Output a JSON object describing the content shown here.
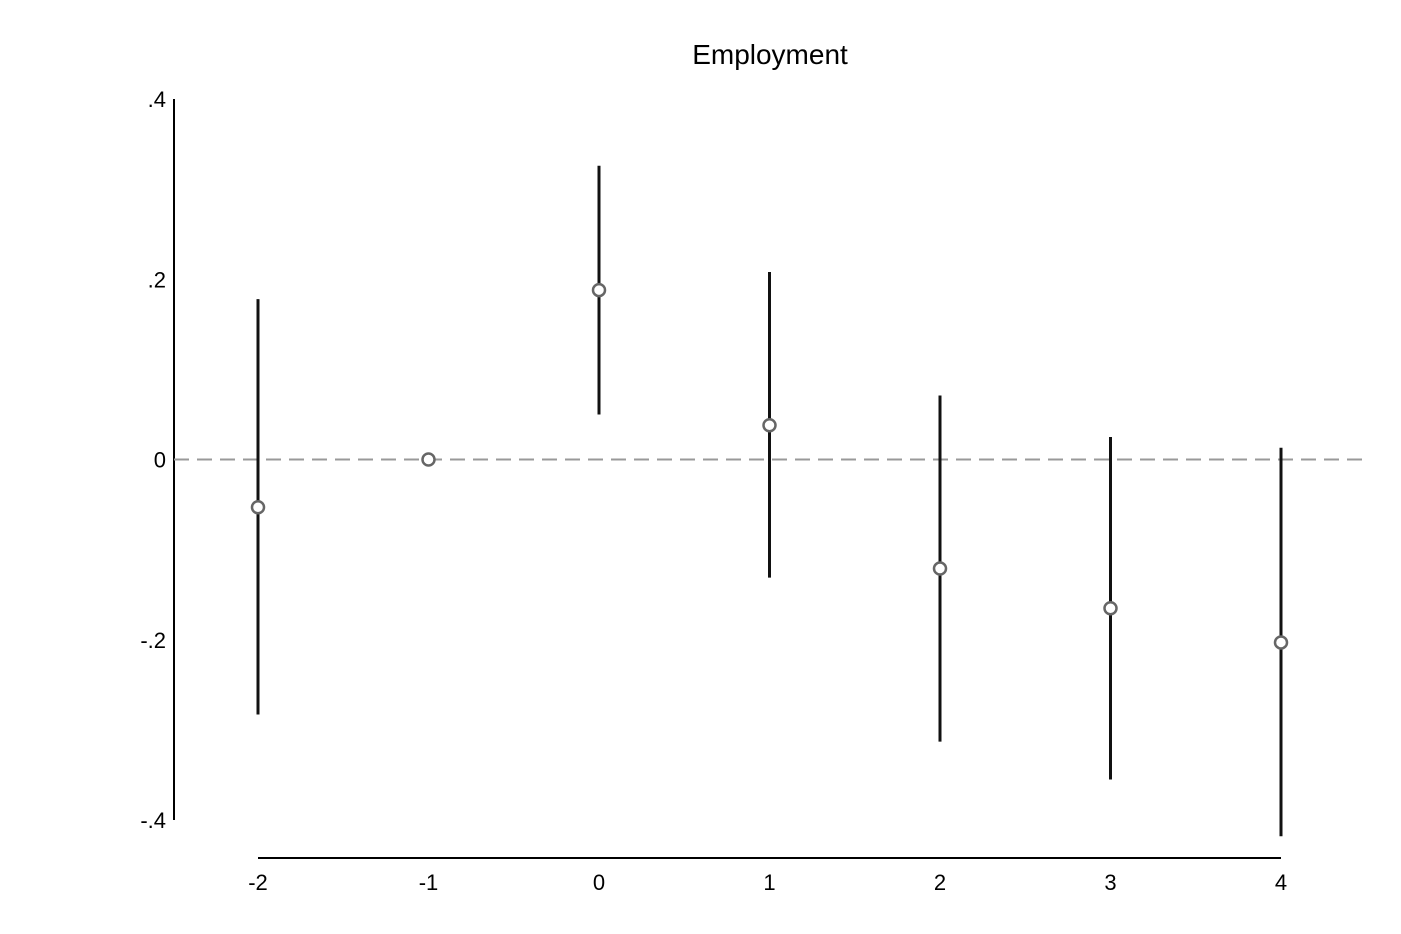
{
  "chart_data": {
    "type": "scatter",
    "title": "Employment",
    "xlabel": "",
    "ylabel": "",
    "x": [
      -2,
      -1,
      0,
      1,
      2,
      3,
      4
    ],
    "series": [
      {
        "values": [
          -0.053,
          0.0,
          0.188,
          0.038,
          -0.121,
          -0.165,
          -0.203
        ],
        "ci_lower": [
          -0.283,
          null,
          0.05,
          -0.131,
          -0.313,
          -0.355,
          -0.418
        ],
        "ci_upper": [
          0.178,
          null,
          0.326,
          0.208,
          0.071,
          0.025,
          0.013
        ]
      }
    ],
    "xlim": [
      -2,
      4
    ],
    "ylim": [
      -0.4,
      0.4
    ],
    "x_ticks": [
      "-2",
      "-1",
      "0",
      "1",
      "2",
      "3",
      "4"
    ],
    "y_ticks": [
      {
        "value": 0.4,
        "label": ".4"
      },
      {
        "value": 0.2,
        "label": ".2"
      },
      {
        "value": 0,
        "label": "0"
      },
      {
        "value": -0.2,
        "label": "-.2"
      },
      {
        "value": -0.4,
        "label": "-.4"
      }
    ],
    "reference_line": {
      "y": 0,
      "style": "dashed",
      "color": "#999999"
    },
    "marker_color": "#666666",
    "errorbar_color": "#111111",
    "grid": false,
    "legend": "none"
  }
}
